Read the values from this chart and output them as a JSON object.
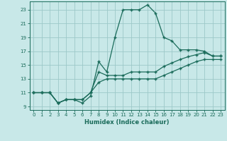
{
  "background_color": "#c8e8e8",
  "grid_color": "#9cc8c8",
  "line_color": "#1a6b5a",
  "xlabel": "Humidex (Indice chaleur)",
  "xlim": [
    -0.5,
    23.5
  ],
  "ylim": [
    8.5,
    24.2
  ],
  "yticks": [
    9,
    11,
    13,
    15,
    17,
    19,
    21,
    23
  ],
  "xticks": [
    0,
    1,
    2,
    3,
    4,
    5,
    6,
    7,
    8,
    9,
    10,
    11,
    12,
    13,
    14,
    15,
    16,
    17,
    18,
    19,
    20,
    21,
    22,
    23
  ],
  "line1_x": [
    0,
    1,
    2,
    3,
    4,
    5,
    6,
    7,
    8,
    9,
    10,
    11,
    12,
    13,
    14,
    15,
    16,
    17,
    18,
    19,
    20,
    21,
    22,
    23
  ],
  "line1_y": [
    11,
    11,
    11,
    9.5,
    10,
    10,
    9.5,
    10.5,
    15.5,
    14,
    19,
    23,
    23,
    23,
    23.7,
    22.5,
    19,
    18.5,
    17.2,
    17.2,
    17.2,
    17,
    16.3,
    16.3
  ],
  "line2_x": [
    0,
    1,
    2,
    3,
    4,
    5,
    6,
    7,
    8,
    9,
    10,
    11,
    12,
    13,
    14,
    15,
    16,
    17,
    18,
    19,
    20,
    21,
    22,
    23
  ],
  "line2_y": [
    11,
    11,
    11,
    9.5,
    10,
    10,
    10,
    11,
    14,
    13.5,
    13.5,
    13.5,
    14,
    14,
    14,
    14,
    14.8,
    15.3,
    15.8,
    16.2,
    16.5,
    16.8,
    16.3,
    16.3
  ],
  "line3_x": [
    0,
    1,
    2,
    3,
    4,
    5,
    6,
    7,
    8,
    9,
    10,
    11,
    12,
    13,
    14,
    15,
    16,
    17,
    18,
    19,
    20,
    21,
    22,
    23
  ],
  "line3_y": [
    11,
    11,
    11,
    9.5,
    10,
    10,
    10,
    11,
    12.5,
    13,
    13,
    13,
    13,
    13,
    13,
    13,
    13.5,
    14,
    14.5,
    15,
    15.5,
    15.8,
    15.8,
    15.8
  ],
  "marker": "+",
  "markersize": 3.5,
  "linewidth": 0.9
}
